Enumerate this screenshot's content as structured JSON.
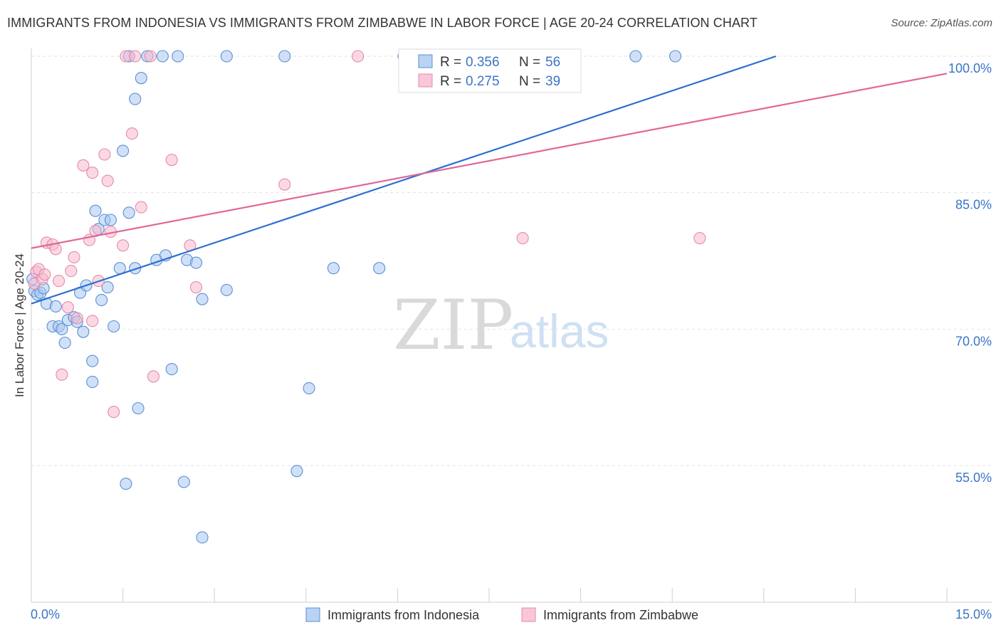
{
  "title": "IMMIGRANTS FROM INDONESIA VS IMMIGRANTS FROM ZIMBABWE IN LABOR FORCE | AGE 20-24 CORRELATION CHART",
  "source": "Source: ZipAtlas.com",
  "watermark": {
    "zip": "ZIP",
    "atlas": "atlas"
  },
  "chart_data": {
    "type": "scatter",
    "ylabel": "In Labor Force | Age 20-24",
    "xlim": [
      0.0,
      15.0
    ],
    "ylim": [
      42.0,
      103.0
    ],
    "x_tick_labels": [
      "0.0%",
      "15.0%"
    ],
    "y_ticks": [
      55.0,
      70.0,
      85.0,
      100.0
    ],
    "y_tick_labels": [
      "55.0%",
      "70.0%",
      "85.0%",
      "100.0%"
    ],
    "grid": true,
    "legend_position": "bottom",
    "colors": {
      "indonesia_fill": "#a9c8f0",
      "indonesia_stroke": "#5b8fd6",
      "indonesia_line": "#2e6fcf",
      "zimbabwe_fill": "#f7b9ce",
      "zimbabwe_stroke": "#e58aaa",
      "zimbabwe_line": "#e0689a",
      "value_text": "#3b74c7"
    },
    "stats_box": [
      {
        "r_label": "R =",
        "r_value": "0.356",
        "n_label": "N =",
        "n_value": "56"
      },
      {
        "r_label": "R =",
        "r_value": "0.275",
        "n_label": "N =",
        "n_value": "39"
      }
    ],
    "series": [
      {
        "name": "Immigrants from Indonesia",
        "trend": [
          [
            0.0,
            72.8
          ],
          [
            12.2,
            100.0
          ]
        ],
        "points": [
          [
            0.02,
            75.5
          ],
          [
            0.05,
            74.2
          ],
          [
            0.1,
            73.8
          ],
          [
            0.15,
            74.0
          ],
          [
            0.2,
            74.5
          ],
          [
            0.25,
            72.8
          ],
          [
            0.35,
            70.3
          ],
          [
            0.4,
            72.5
          ],
          [
            0.45,
            70.3
          ],
          [
            0.5,
            70.0
          ],
          [
            0.55,
            68.5
          ],
          [
            0.6,
            71.0
          ],
          [
            0.7,
            71.3
          ],
          [
            0.75,
            70.8
          ],
          [
            0.8,
            74.0
          ],
          [
            0.85,
            69.7
          ],
          [
            0.9,
            74.8
          ],
          [
            1.0,
            66.5
          ],
          [
            1.0,
            64.2
          ],
          [
            1.05,
            83.0
          ],
          [
            1.1,
            81.0
          ],
          [
            1.15,
            73.2
          ],
          [
            1.2,
            82.0
          ],
          [
            1.25,
            74.6
          ],
          [
            1.3,
            82.0
          ],
          [
            1.35,
            70.3
          ],
          [
            1.45,
            76.7
          ],
          [
            1.5,
            89.6
          ],
          [
            1.55,
            53.0
          ],
          [
            1.6,
            82.8
          ],
          [
            1.6,
            100.0
          ],
          [
            1.7,
            76.7
          ],
          [
            1.7,
            95.3
          ],
          [
            1.75,
            61.3
          ],
          [
            1.8,
            97.6
          ],
          [
            1.9,
            100.0
          ],
          [
            2.05,
            77.6
          ],
          [
            2.15,
            100.0
          ],
          [
            2.2,
            78.1
          ],
          [
            2.3,
            65.6
          ],
          [
            2.4,
            100.0
          ],
          [
            2.5,
            53.2
          ],
          [
            2.55,
            77.6
          ],
          [
            2.7,
            77.3
          ],
          [
            2.8,
            47.1
          ],
          [
            2.8,
            73.3
          ],
          [
            3.2,
            74.3
          ],
          [
            3.2,
            100.0
          ],
          [
            4.15,
            100.0
          ],
          [
            4.35,
            54.4
          ],
          [
            4.55,
            63.5
          ],
          [
            4.95,
            76.7
          ],
          [
            5.7,
            76.7
          ],
          [
            6.1,
            100.0
          ],
          [
            9.9,
            100.0
          ],
          [
            10.55,
            100.0
          ]
        ]
      },
      {
        "name": "Immigrants from Zimbabwe",
        "trend": [
          [
            0.0,
            78.9
          ],
          [
            15.0,
            98.1
          ]
        ],
        "points": [
          [
            0.05,
            75.0
          ],
          [
            0.08,
            76.3
          ],
          [
            0.12,
            76.6
          ],
          [
            0.18,
            75.5
          ],
          [
            0.22,
            76.0
          ],
          [
            0.25,
            79.5
          ],
          [
            0.35,
            79.3
          ],
          [
            0.4,
            78.8
          ],
          [
            0.45,
            75.3
          ],
          [
            0.5,
            65.0
          ],
          [
            0.6,
            72.4
          ],
          [
            0.65,
            76.4
          ],
          [
            0.7,
            77.9
          ],
          [
            0.75,
            71.2
          ],
          [
            0.85,
            88.0
          ],
          [
            0.95,
            79.8
          ],
          [
            1.0,
            87.2
          ],
          [
            1.0,
            70.9
          ],
          [
            1.05,
            80.8
          ],
          [
            1.1,
            75.3
          ],
          [
            1.2,
            89.2
          ],
          [
            1.25,
            86.3
          ],
          [
            1.3,
            80.7
          ],
          [
            1.35,
            60.9
          ],
          [
            1.5,
            79.2
          ],
          [
            1.55,
            100.0
          ],
          [
            1.65,
            91.5
          ],
          [
            1.7,
            100.0
          ],
          [
            1.8,
            83.4
          ],
          [
            1.95,
            100.0
          ],
          [
            2.0,
            64.8
          ],
          [
            2.3,
            88.6
          ],
          [
            2.6,
            79.2
          ],
          [
            2.7,
            74.6
          ],
          [
            4.15,
            85.9
          ],
          [
            5.35,
            100.0
          ],
          [
            6.15,
            100.0
          ],
          [
            8.05,
            80.0
          ],
          [
            10.95,
            80.0
          ]
        ]
      }
    ]
  }
}
